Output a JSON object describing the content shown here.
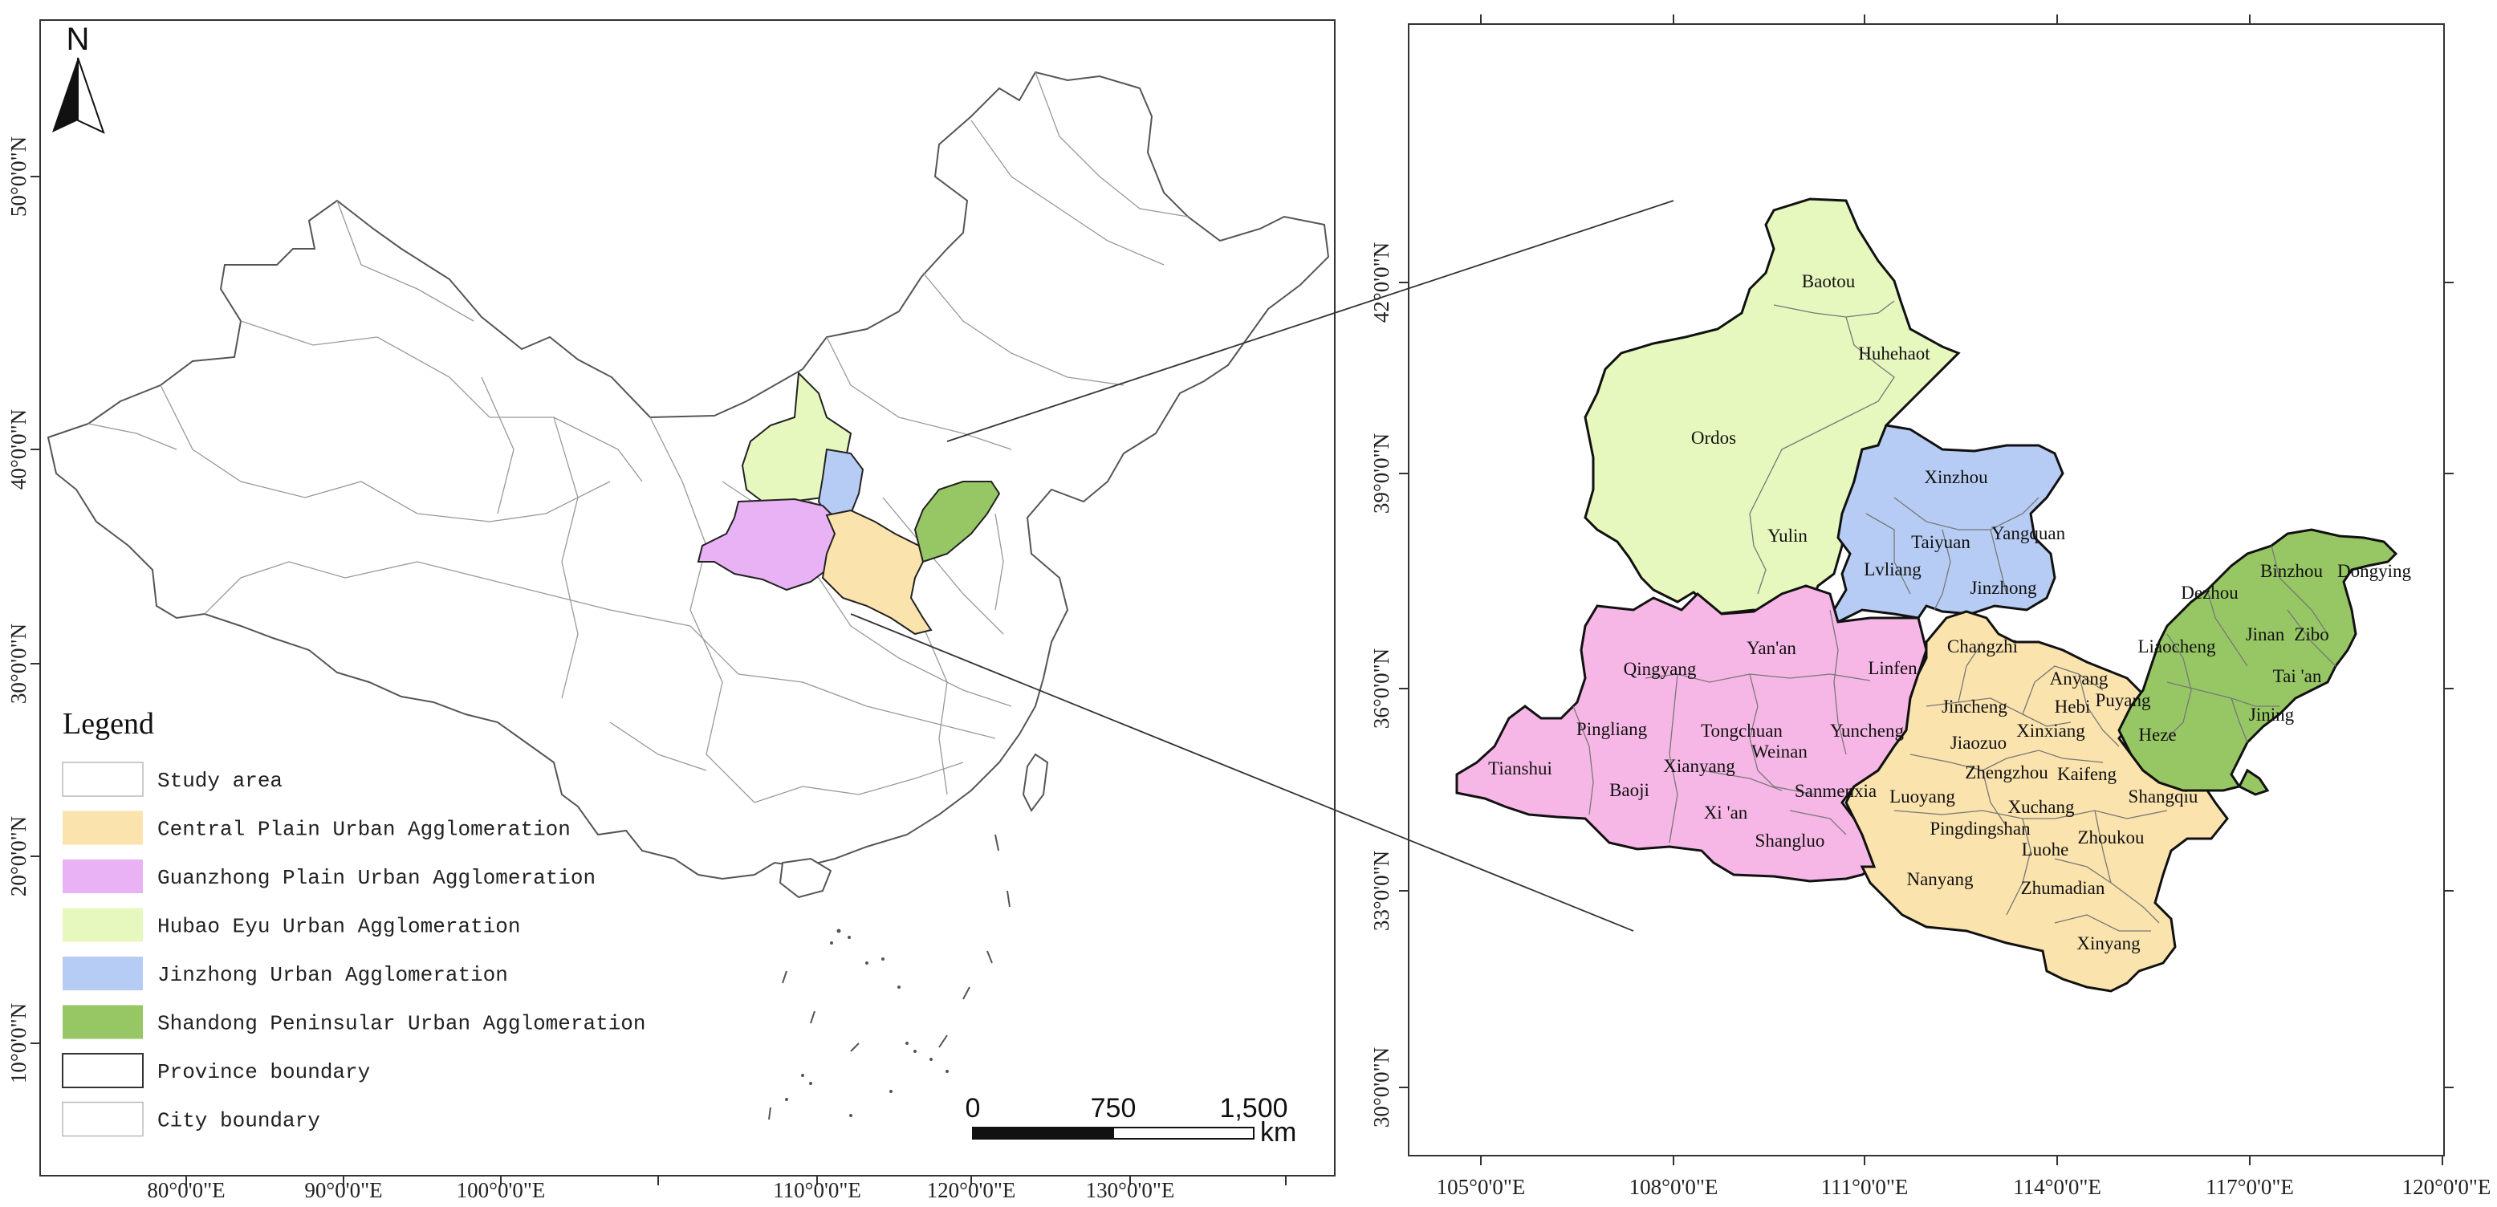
{
  "colors": {
    "central_plain": "#fbe3ae",
    "guanzhong": "#f7b7e6",
    "guanzhong_legend": "#e8b2f4",
    "hubao_eyu": "#e7f8be",
    "jinzhong": "#b7ccf4",
    "shandong": "#97c764",
    "frame": "#333333",
    "boundary": "#555555"
  },
  "north_arrow": {
    "label": "N",
    "icon": "north-arrow-icon"
  },
  "legend": {
    "title": "Legend",
    "items": [
      {
        "label": "Study area",
        "swatch": "#ffffff"
      },
      {
        "label": "Central Plain Urban Agglomeration",
        "swatch": "#fbe3ae"
      },
      {
        "label": "Guanzhong Plain Urban Agglomeration",
        "swatch": "#e8b2f4"
      },
      {
        "label": "Hubao Eyu  Urban Agglomeration",
        "swatch": "#e7f8be"
      },
      {
        "label": "Jinzhong Urban Agglomeration",
        "swatch": "#b7ccf4"
      },
      {
        "label": "Shandong Peninsular Urban Agglomeration",
        "swatch": "#97c764"
      },
      {
        "label": "Province boundary",
        "swatch": "#ffffff"
      },
      {
        "label": "City boundary",
        "swatch": "#ffffff"
      }
    ]
  },
  "scale_bar": {
    "labels": [
      "0",
      "750",
      "1,500"
    ],
    "unit": "km"
  },
  "left_map": {
    "lon_labels": [
      "80°0'0\"E",
      "90°0'0\"E",
      "100°0'0\"E",
      "110°0'0\"E",
      "120°0'0\"E",
      "130°0'0\"E"
    ],
    "lat_labels": [
      "50°0'0\"N",
      "40°0'0\"N",
      "30°0'0\"N",
      "20°0'0\"N",
      "10°0'0\"N"
    ]
  },
  "right_map": {
    "lon_labels": [
      "105°0'0\"E",
      "108°0'0\"E",
      "111°0'0\"E",
      "114°0'0\"E",
      "117°0'0\"E",
      "120°0'0\"E"
    ],
    "lat_labels": [
      "42°0'0\"N",
      "39°0'0\"N",
      "36°0'0\"N",
      "33°0'0\"N",
      "30°0'0\"N"
    ],
    "cities": [
      "Baotou",
      "Huhehaot",
      "Ordos",
      "Yulin",
      "Xinzhou",
      "Taiyuan",
      "Yangquan",
      "Lvliang",
      "Jinzhong",
      "Yan'an",
      "Qingyang",
      "Linfen",
      "Pingliang",
      "Tongchuan",
      "Yuncheng",
      "Tianshui",
      "Xianyang",
      "Weinan",
      "Baoji",
      "Xi 'an",
      "Sanmenxia",
      "Shangluo",
      "Changzhi",
      "Anyang",
      "Jincheng",
      "Hebi",
      "Puyang",
      "Jiaozuo",
      "Xinxiang",
      "Zhengzhou",
      "Kaifeng",
      "Luoyang",
      "Xuchang",
      "Shangqiu",
      "Pingdingshan",
      "Zhoukou",
      "Luohe",
      "Nanyang",
      "Zhumadian",
      "Xinyang",
      "Binzhou",
      "Dongying",
      "Dezhou",
      "Liaocheng",
      "Jinan",
      "Zibo",
      "Tai 'an",
      "Heze",
      "Jining"
    ]
  }
}
